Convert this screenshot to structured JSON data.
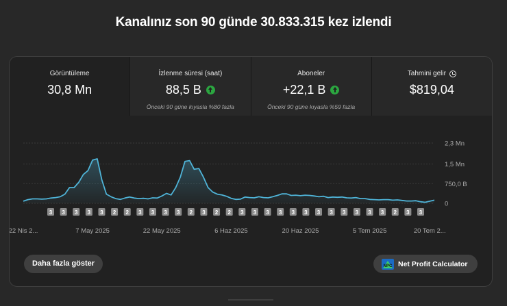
{
  "header": {
    "title": "Kanalınız son 90 günde 30.833.315 kez izlendi"
  },
  "metrics": [
    {
      "label": "Görüntüleme",
      "value": "30,8 Mn",
      "note": ""
    },
    {
      "label": "İzlenme süresi (saat)",
      "value": "88,5 B",
      "note": "Önceki 90 güne kıyasla %80 fazla",
      "trend_icon": "arrow-up-circle"
    },
    {
      "label": "Aboneler",
      "value": "+22,1 B",
      "note": "Önceki 90 güne kıyasla %59 fazla",
      "trend_icon": "arrow-up-circle"
    },
    {
      "label": "Tahmini gelir",
      "value": "$819,04",
      "note": "",
      "label_icon": "clock"
    }
  ],
  "colors": {
    "line": "#4fb4d8",
    "up": "#2ba640",
    "background": "#282828"
  },
  "chart_data": {
    "type": "area",
    "y_tick_labels": [
      "2,3 Mn",
      "1,5 Mn",
      "750,0 B",
      "0"
    ],
    "y_ticks": [
      2300000,
      1500000,
      750000,
      0
    ],
    "ylim": [
      0,
      2300000
    ],
    "x_tick_labels": [
      "22 Nis 2...",
      "7 May 2025",
      "22 May 2025",
      "6 Haz 2025",
      "20 Haz 2025",
      "5 Tem 2025",
      "20 Tem 2..."
    ],
    "x_tick_days": [
      0,
      15,
      30,
      45,
      60,
      75,
      88
    ],
    "values": [
      80000,
      140000,
      170000,
      170000,
      160000,
      170000,
      200000,
      220000,
      250000,
      350000,
      600000,
      600000,
      800000,
      1100000,
      1250000,
      1650000,
      1700000,
      900000,
      350000,
      250000,
      180000,
      150000,
      200000,
      240000,
      200000,
      180000,
      190000,
      170000,
      210000,
      200000,
      280000,
      380000,
      320000,
      600000,
      1000000,
      1600000,
      1630000,
      1300000,
      1330000,
      1000000,
      600000,
      430000,
      350000,
      320000,
      270000,
      190000,
      150000,
      160000,
      240000,
      220000,
      210000,
      250000,
      220000,
      210000,
      250000,
      300000,
      360000,
      360000,
      300000,
      310000,
      290000,
      310000,
      300000,
      280000,
      250000,
      270000,
      220000,
      240000,
      230000,
      240000,
      210000,
      200000,
      220000,
      180000,
      180000,
      150000,
      140000,
      130000,
      140000,
      140000,
      120000,
      130000,
      110000,
      90000,
      90000,
      100000,
      60000,
      40000,
      80000,
      120000
    ],
    "markers": [
      "3",
      "3",
      "3",
      "3",
      "3",
      "2",
      "2",
      "3",
      "3",
      "3",
      "3",
      "2",
      "3",
      "2",
      "2",
      "3",
      "3",
      "3",
      "3",
      "3",
      "3",
      "3",
      "3",
      "3",
      "3",
      "3",
      "3",
      "2",
      "3",
      "3"
    ]
  },
  "buttons": {
    "show_more": "Daha fazla göster",
    "npc_label": "Net Profit Calculator",
    "npc_logo_text": "NPC"
  }
}
